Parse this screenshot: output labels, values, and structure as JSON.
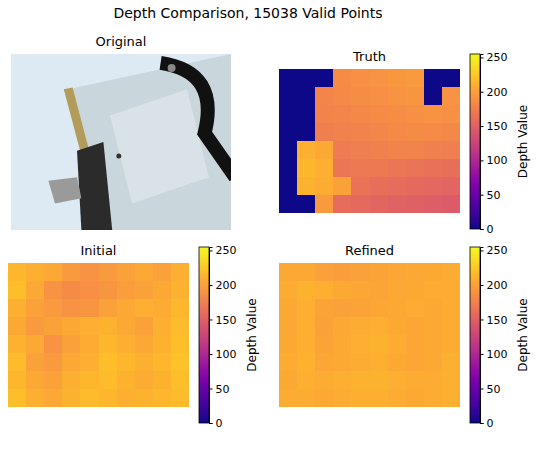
{
  "title": "Depth Comparison, 15038 Valid Points",
  "chart_data": [
    {
      "type": "image",
      "title": "Original",
      "tick_labels": false
    },
    {
      "type": "heatmap",
      "title": "Truth",
      "tick_labels": false,
      "cells": [
        [
          0,
          0,
          0,
          185,
          188,
          190,
          193,
          195,
          0,
          0
        ],
        [
          0,
          0,
          180,
          183,
          186,
          188,
          190,
          192,
          0,
          190
        ],
        [
          0,
          0,
          178,
          180,
          182,
          184,
          186,
          188,
          190,
          188
        ],
        [
          0,
          0,
          175,
          177,
          179,
          181,
          183,
          185,
          184,
          182
        ],
        [
          0,
          210,
          205,
          172,
          174,
          176,
          178,
          178,
          176,
          174
        ],
        [
          0,
          215,
          210,
          168,
          170,
          170,
          168,
          166,
          164,
          162
        ],
        [
          0,
          212,
          208,
          200,
          165,
          162,
          160,
          158,
          156,
          154
        ],
        [
          0,
          0,
          195,
          160,
          158,
          155,
          152,
          150,
          148,
          146
        ]
      ],
      "colorbar": {
        "label": "Depth Value",
        "lim": [
          0,
          255
        ],
        "ticks": [
          0,
          50,
          100,
          150,
          200,
          250
        ]
      }
    },
    {
      "type": "heatmap",
      "title": "Initial",
      "tick_labels": false,
      "cells": [
        [
          215,
          210,
          205,
          195,
          190,
          195,
          200,
          205,
          200,
          210
        ],
        [
          220,
          205,
          190,
          185,
          188,
          192,
          198,
          200,
          205,
          212
        ],
        [
          210,
          200,
          195,
          190,
          192,
          200,
          205,
          210,
          208,
          215
        ],
        [
          205,
          195,
          200,
          205,
          210,
          212,
          205,
          200,
          210,
          218
        ],
        [
          212,
          205,
          190,
          200,
          208,
          215,
          210,
          205,
          212,
          220
        ],
        [
          218,
          200,
          195,
          205,
          210,
          220,
          215,
          210,
          215,
          222
        ],
        [
          215,
          205,
          200,
          210,
          215,
          218,
          212,
          208,
          212,
          220
        ],
        [
          220,
          210,
          205,
          212,
          218,
          215,
          210,
          212,
          215,
          218
        ]
      ],
      "colorbar": {
        "label": "Depth Value",
        "lim": [
          0,
          255
        ],
        "ticks": [
          0,
          50,
          100,
          150,
          200,
          250
        ]
      }
    },
    {
      "type": "heatmap",
      "title": "Refined",
      "tick_labels": false,
      "cells": [
        [
          205,
          205,
          200,
          198,
          200,
          202,
          204,
          205,
          206,
          208
        ],
        [
          208,
          212,
          210,
          206,
          204,
          203,
          205,
          206,
          207,
          208
        ],
        [
          206,
          210,
          202,
          200,
          202,
          204,
          206,
          208,
          206,
          208
        ],
        [
          205,
          210,
          200,
          205,
          208,
          210,
          206,
          204,
          206,
          208
        ],
        [
          206,
          210,
          202,
          206,
          210,
          212,
          208,
          204,
          206,
          208
        ],
        [
          207,
          212,
          204,
          206,
          208,
          210,
          206,
          204,
          206,
          210
        ],
        [
          206,
          210,
          208,
          210,
          212,
          212,
          210,
          208,
          208,
          210
        ],
        [
          208,
          208,
          206,
          208,
          210,
          210,
          208,
          206,
          208,
          210
        ]
      ],
      "colorbar": {
        "label": "Depth Value",
        "lim": [
          0,
          255
        ],
        "ticks": [
          0,
          50,
          100,
          150,
          200,
          250
        ]
      }
    }
  ]
}
